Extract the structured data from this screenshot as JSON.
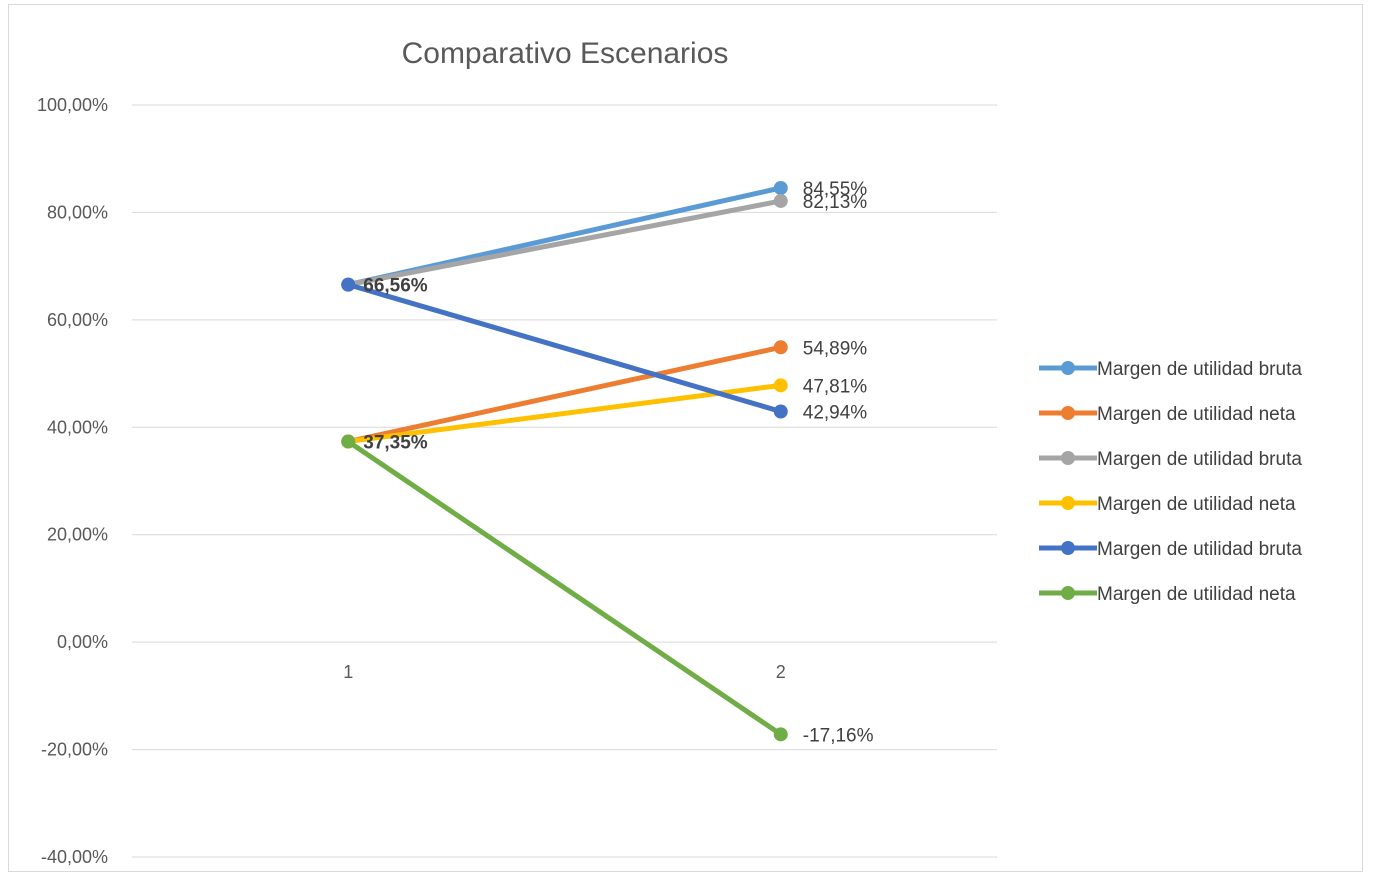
{
  "chart_data": {
    "type": "line",
    "title": "Comparativo Escenarios",
    "xlabel": "",
    "ylabel": "",
    "categories": [
      "1",
      "2"
    ],
    "ylim": [
      -40,
      100
    ],
    "y_ticks": [
      -40,
      -20,
      0,
      20,
      40,
      60,
      80,
      100
    ],
    "y_tick_labels": [
      "-40,00%",
      "-20,00%",
      "0,00%",
      "20,00%",
      "40,00%",
      "60,00%",
      "80,00%",
      "100,00%"
    ],
    "grid": true,
    "legend_position": "right",
    "series": [
      {
        "name": "Margen de utilidad bruta",
        "color": "#5b9bd5",
        "values": [
          66.56,
          84.55
        ],
        "labels": [
          "",
          "84,55%"
        ]
      },
      {
        "name": "Margen de utilidad neta",
        "color": "#ed7d31",
        "values": [
          37.35,
          54.89
        ],
        "labels": [
          "",
          "54,89%"
        ]
      },
      {
        "name": "Margen de utilidad bruta",
        "color": "#a5a5a5",
        "values": [
          66.56,
          82.13
        ],
        "labels": [
          "",
          "82,13%"
        ]
      },
      {
        "name": "Margen de utilidad neta",
        "color": "#ffc000",
        "values": [
          37.35,
          47.81
        ],
        "labels": [
          "",
          "47,81%"
        ]
      },
      {
        "name": "Margen de utilidad bruta",
        "color": "#4472c4",
        "values": [
          66.56,
          42.94
        ],
        "labels": [
          "66,56%",
          "42,94%"
        ]
      },
      {
        "name": "Margen de utilidad neta",
        "color": "#70ad47",
        "values": [
          37.35,
          -17.16
        ],
        "labels": [
          "37,35%",
          "-17,16%"
        ]
      }
    ]
  }
}
